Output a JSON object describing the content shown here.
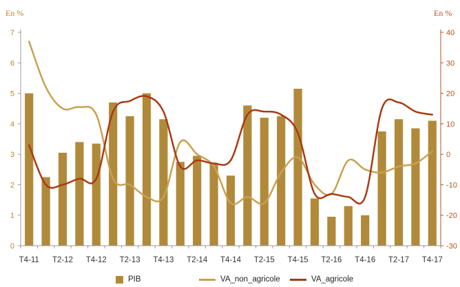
{
  "chart_data": {
    "type": "bar+line",
    "left_axis_unit": "En %",
    "right_axis_unit": "En %",
    "ylim_left": [
      0,
      7
    ],
    "ylim_right": [
      -30,
      40
    ],
    "yticks_left": [
      "0",
      "1",
      "2",
      "3",
      "4",
      "5",
      "6",
      "7"
    ],
    "yticks_right": [
      "-30",
      "-20",
      "-10",
      "0",
      "10",
      "20",
      "30",
      "40"
    ],
    "x_tick_labels": [
      "T4-11",
      "T2-12",
      "T4-12",
      "T2-13",
      "T4-13",
      "T2-14",
      "T4-14",
      "T2-15",
      "T4-15",
      "T2-16",
      "T4-16",
      "T2-17",
      "T4-17"
    ],
    "categories": [
      "T4-11",
      "T1-12",
      "T2-12",
      "T3-12",
      "T4-12",
      "T1-13",
      "T2-13",
      "T3-13",
      "T4-13",
      "T1-14",
      "T2-14",
      "T3-14",
      "T4-14",
      "T1-15",
      "T2-15",
      "T3-15",
      "T4-15",
      "T1-16",
      "T2-16",
      "T3-16",
      "T4-16",
      "T1-17",
      "T2-17",
      "T3-17",
      "T4-17"
    ],
    "series": [
      {
        "name": "PIB",
        "kind": "bar",
        "axis": "left",
        "color": "#b08a3a",
        "values": [
          5.0,
          2.25,
          3.05,
          3.4,
          3.35,
          4.7,
          4.25,
          5.0,
          4.15,
          2.75,
          2.95,
          2.7,
          2.3,
          4.6,
          4.2,
          4.25,
          5.15,
          1.55,
          0.95,
          1.3,
          1.0,
          3.75,
          4.15,
          3.85,
          4.1
        ]
      },
      {
        "name": "VA_non_agricole",
        "kind": "line",
        "axis": "right",
        "color": "#c9a050",
        "values": [
          37,
          22,
          15,
          15.5,
          13,
          -8,
          -10,
          -14,
          -14,
          4,
          0,
          -4,
          -16,
          -14,
          -16,
          -6,
          -1,
          -10,
          -13,
          -2,
          -5,
          -6,
          -4,
          -3,
          1
        ]
      },
      {
        "name": "VA_agricole",
        "kind": "line",
        "axis": "right",
        "color": "#a83a12",
        "values": [
          3,
          -10,
          -10,
          -8,
          -8,
          14,
          17.5,
          19,
          14,
          -4,
          -2,
          -3,
          -2,
          13,
          14,
          13,
          7,
          -13,
          -13,
          -14,
          -14,
          15,
          17,
          14,
          13
        ]
      }
    ],
    "legend_position": "bottom"
  }
}
